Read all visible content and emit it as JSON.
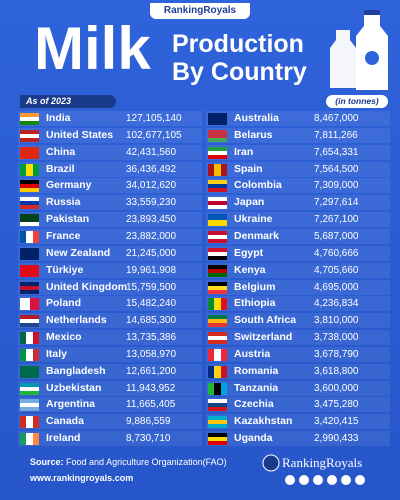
{
  "header": {
    "brand": "RankingRoyals",
    "title_big": "Milk",
    "title_line1": "Production",
    "title_line2": "By Country",
    "as_of": "As of 2023",
    "unit": "(in tonnes)"
  },
  "table": {
    "left_column": [
      {
        "country": "India",
        "production": "127,105,140"
      },
      {
        "country": "United States",
        "production": "102,677,105"
      },
      {
        "country": "China",
        "production": "42,431,560"
      },
      {
        "country": "Brazil",
        "production": "36,436,492"
      },
      {
        "country": "Germany",
        "production": "34,012,620"
      },
      {
        "country": "Russia",
        "production": "33,559,230"
      },
      {
        "country": "Pakistan",
        "production": "23,893,450"
      },
      {
        "country": "France",
        "production": "23,882,000"
      },
      {
        "country": "New Zealand",
        "production": "21,245,000"
      },
      {
        "country": "Türkiye",
        "production": "19,961,908"
      },
      {
        "country": "United Kingdom",
        "production": "15,759,500"
      },
      {
        "country": "Poland",
        "production": "15,482,240"
      },
      {
        "country": "Netherlands",
        "production": "14,685,300"
      },
      {
        "country": "Mexico",
        "production": "13,735,386"
      },
      {
        "country": "Italy",
        "production": "13,058,970"
      },
      {
        "country": "Bangladesh",
        "production": "12,661,200"
      },
      {
        "country": "Uzbekistan",
        "production": "11,943,952"
      },
      {
        "country": "Argentina",
        "production": "11,665,405"
      },
      {
        "country": "Canada",
        "production": "9,886,559"
      },
      {
        "country": "Ireland",
        "production": "8,730,710"
      }
    ],
    "right_column": [
      {
        "country": "Australia",
        "production": "8,467,000"
      },
      {
        "country": "Belarus",
        "production": "7,811,266"
      },
      {
        "country": "Iran",
        "production": "7,654,331"
      },
      {
        "country": "Spain",
        "production": "7,564,500"
      },
      {
        "country": "Colombia",
        "production": "7,309,000"
      },
      {
        "country": "Japan",
        "production": "7,297,614"
      },
      {
        "country": "Ukraine",
        "production": "7,267,100"
      },
      {
        "country": "Denmark",
        "production": "5,687,000"
      },
      {
        "country": "Egypt",
        "production": "4,760,666"
      },
      {
        "country": "Kenya",
        "production": "4,705,660"
      },
      {
        "country": "Belgium",
        "production": "4,695,000"
      },
      {
        "country": "Ethiopia",
        "production": "4,236,834"
      },
      {
        "country": "South Africa",
        "production": "3,810,000"
      },
      {
        "country": "Switzerland",
        "production": "3,738,000"
      },
      {
        "country": "Austria",
        "production": "3,678,790"
      },
      {
        "country": "Romania",
        "production": "3,618,800"
      },
      {
        "country": "Tanzania",
        "production": "3,600,000"
      },
      {
        "country": "Czechia",
        "production": "3,475,280"
      },
      {
        "country": "Kazakhstan",
        "production": "3,420,415"
      },
      {
        "country": "Uganda",
        "production": "2,990,433"
      }
    ]
  },
  "footer": {
    "source_label": "Source:",
    "source": "Food and Agriculture Organization(FAO)",
    "website": "www.rankingroyals.com",
    "brand": "RankingRoyals"
  }
}
